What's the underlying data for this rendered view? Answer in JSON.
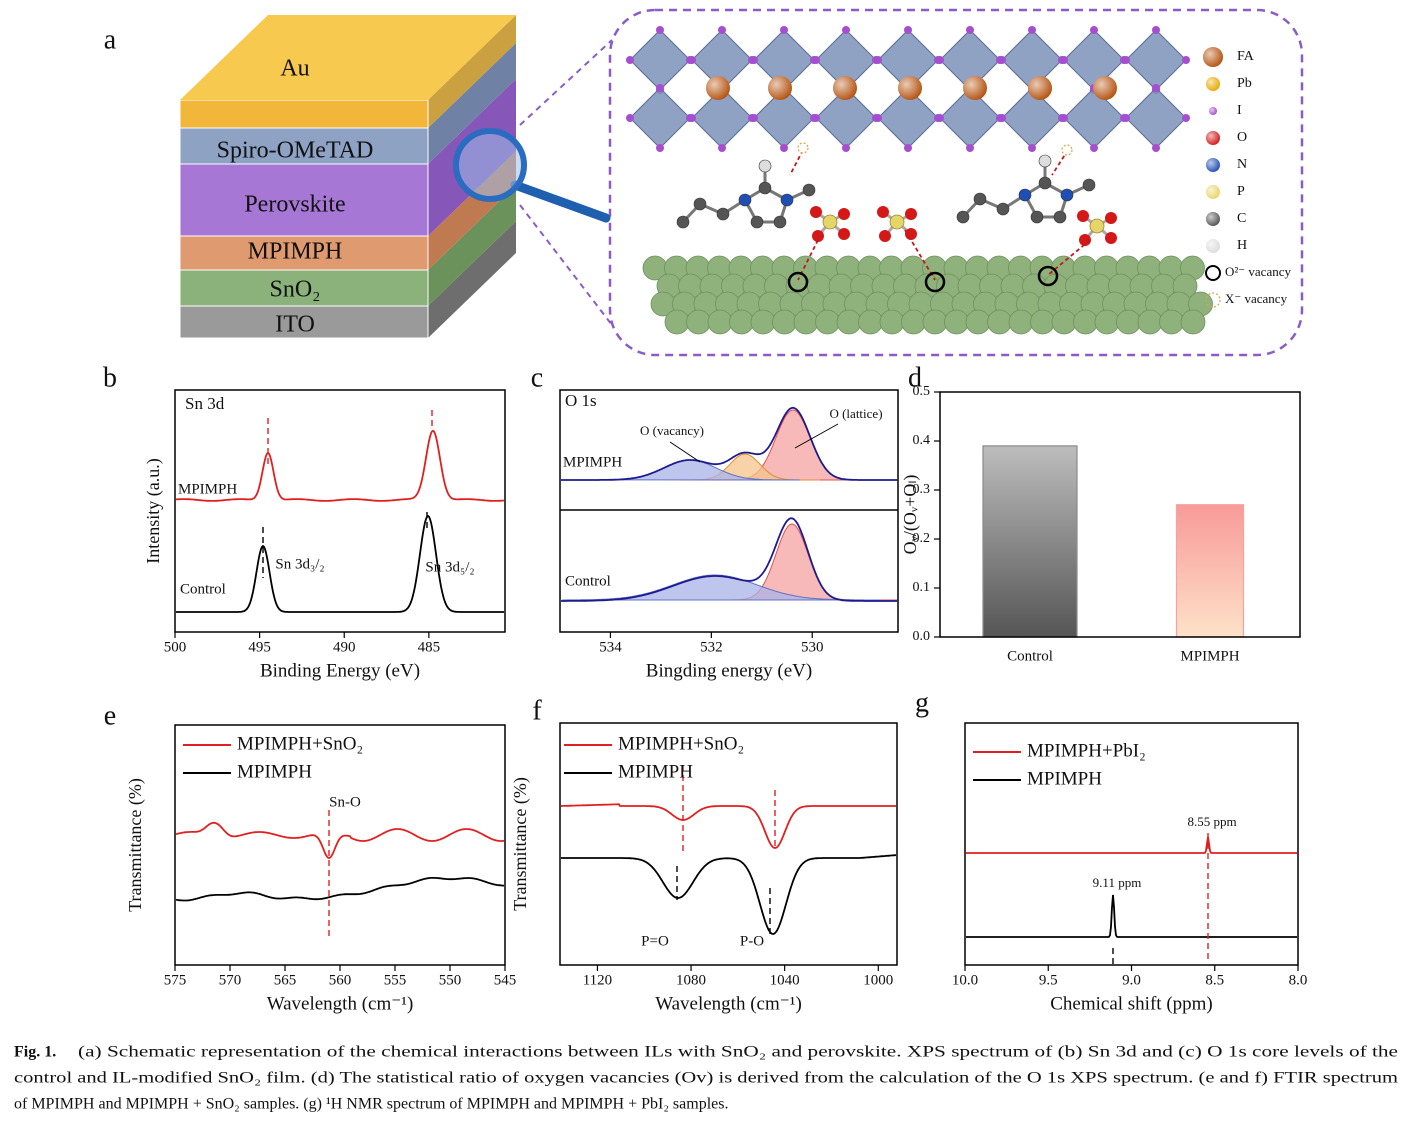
{
  "figure_a": {
    "panel": "a",
    "layers": [
      "Au",
      "Spiro-OMeTAD",
      "Perovskite",
      "MPIMPH",
      "SnO₂",
      "ITO"
    ],
    "legend": [
      "FA",
      "Pb",
      "I",
      "O",
      "N",
      "P",
      "C",
      "H",
      "O²⁻ vacancy",
      "X⁻ vacancy"
    ]
  },
  "chart_data": [
    {
      "type": "spectrum",
      "panel": "b",
      "title": "Sn 3d",
      "xlabel": "Binding Energy (eV)",
      "ylabel": "Intensity (a.u.)",
      "xlim": [
        500,
        480.5
      ],
      "xticks": [
        500,
        495,
        490,
        485
      ],
      "series": [
        {
          "name": "MPIMPH",
          "color": "#e02020"
        },
        {
          "name": "Control",
          "color": "#000000"
        }
      ],
      "annotations": [
        "Sn 3d₃/₂",
        "Sn 3d₅/₂"
      ]
    },
    {
      "type": "spectrum",
      "panel": "c",
      "title": "O 1s",
      "xlabel": "Bingding energy (eV)",
      "xlim": [
        535,
        528.3
      ],
      "xticks": [
        534,
        532,
        530
      ],
      "series": [
        {
          "name": "MPIMPH",
          "color": "#1c1c8f"
        },
        {
          "name": "Control",
          "color": "#1c1c8f"
        }
      ],
      "annotations": [
        "O (vacancy)",
        "O (lattice)"
      ]
    },
    {
      "type": "bar",
      "panel": "d",
      "ylabel": "Oᵥ/(Oᵥ+Oₗ)",
      "categories": [
        "Control",
        "MPIMPH"
      ],
      "values": [
        0.39,
        0.27
      ],
      "colors": [
        "#8a8a8a",
        "#f7a2a0"
      ],
      "ylim": [
        0,
        0.5
      ],
      "yticks": [
        {
          "value": 0,
          "label": "0.0"
        },
        0.1,
        0.2,
        0.3,
        0.4,
        0.5
      ]
    },
    {
      "type": "spectrum",
      "panel": "e",
      "xlabel": "Wavelength (cm⁻¹)",
      "ylabel": "Transmittance (%)",
      "xlim": [
        575,
        545
      ],
      "xticks": [
        575,
        570,
        565,
        560,
        555,
        550,
        545
      ],
      "legend": "upper left",
      "series": [
        {
          "name": "MPIMPH+SnO₂",
          "color": "#e02020"
        },
        {
          "name": "MPIMPH",
          "color": "#000000"
        }
      ],
      "annotations": [
        "Sn-O"
      ]
    },
    {
      "type": "spectrum",
      "panel": "f",
      "xlabel": "Wavelength (cm⁻¹)",
      "ylabel": "Transmittance (%)",
      "xlim": [
        1136,
        992
      ],
      "xticks": [
        1120,
        1080,
        1040,
        1000
      ],
      "legend": "upper left",
      "series": [
        {
          "name": "MPIMPH+SnO₂",
          "color": "#e02020"
        },
        {
          "name": "MPIMPH",
          "color": "#000000"
        }
      ],
      "annotations": [
        "P=O",
        "P-O"
      ]
    },
    {
      "type": "spectrum",
      "panel": "g",
      "xlabel": "Chemical shift (ppm)",
      "xlim": [
        10,
        8
      ],
      "xticks": [
        {
          "value": 10,
          "label": "10.0"
        },
        9.5,
        {
          "value": 9,
          "label": "9.0"
        },
        8.5,
        {
          "value": 8,
          "label": "8.0"
        }
      ],
      "legend": "upper left",
      "series": [
        {
          "name": "MPIMPH+PbI₂",
          "color": "#e02020"
        },
        {
          "name": "MPIMPH",
          "color": "#000000"
        }
      ],
      "annotations": [
        "8.55 ppm",
        "9.11 ppm"
      ]
    }
  ],
  "caption": {
    "label": "Fig. 1.",
    "lines": [
      "(a) Schematic representation of the chemical interactions between ILs with SnO₂ and perovskite. XPS spectrum of (b) Sn 3d and (c) O 1s core levels of the",
      "control and IL-modified SnO₂ film. (d) The statistical ratio of oxygen vacancies (Ov) is derived from the calculation of the O 1s XPS spectrum. (e and f) FTIR spectrum",
      "of MPIMPH and MPIMPH + SnO₂ samples. (g) ¹H NMR spectrum of MPIMPH and MPIMPH + PbI₂ samples."
    ]
  }
}
